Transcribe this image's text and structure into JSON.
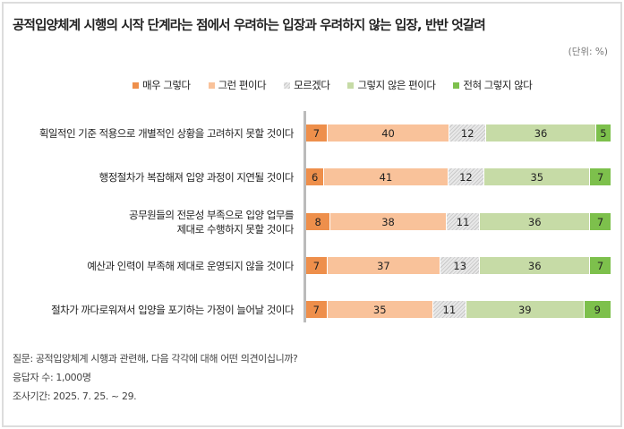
{
  "chart_data": {
    "type": "bar",
    "stacked": true,
    "orientation": "horizontal",
    "title": "공적입양체계 시행의 시작 단계라는 점에서  우려하는 입장과 우려하지 않는 입장, 반반 엇갈려",
    "unit": "(단위: %)",
    "legend_position": "top",
    "categories": [
      "획일적인 기준 적용으로 개별적인 상황을 고려하지 못할 것이다",
      "행정절차가 복잡해져 입양 과정이 지연될 것이다",
      "공무원들의 전문성 부족으로 입양 업무를\n제대로 수행하지 못할 것이다",
      "예산과 인력이 부족해 제대로 운영되지 않을 것이다",
      "절차가 까다로워져서 입양을 포기하는 가정이 늘어날 것이다"
    ],
    "series": [
      {
        "name": "매우 그렇다",
        "color": "#EE8F4B",
        "values": [
          7,
          6,
          8,
          7,
          7
        ]
      },
      {
        "name": "그런 편이다",
        "color": "#F9C29A",
        "values": [
          40,
          41,
          38,
          37,
          35
        ]
      },
      {
        "name": "모르겠다",
        "color": "hatch",
        "values": [
          12,
          12,
          11,
          13,
          11
        ]
      },
      {
        "name": "그렇지 않은 편이다",
        "color": "#C6DBA6",
        "values": [
          36,
          35,
          36,
          36,
          39
        ]
      },
      {
        "name": "전혀 그렇지 않다",
        "color": "#7DC04C",
        "values": [
          5,
          7,
          7,
          7,
          9
        ]
      }
    ]
  },
  "notes": [
    "질문: 공적입양체계 시행과 관련해, 다음 각각에 대해 어떤 의견이십니까?",
    "응답자 수: 1,000명",
    "조사기간: 2025. 7. 25. ~ 29."
  ]
}
